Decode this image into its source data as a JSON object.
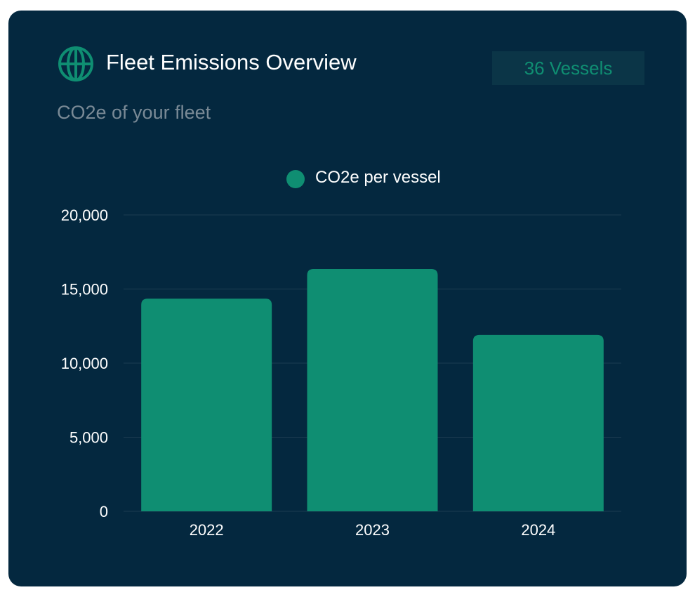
{
  "card": {
    "title": "Fleet Emissions Overview",
    "badge": "36 Vessels",
    "subtitle": "CO2e of your fleet",
    "icon": "globe-icon"
  },
  "colors": {
    "background": "#04283f",
    "bar": "#0f8e72",
    "text": "#ffffff",
    "muted": "#7a8a96",
    "gridline": "#1d3d52"
  },
  "chart_data": {
    "type": "bar",
    "categories": [
      "2022",
      "2023",
      "2024"
    ],
    "series": [
      {
        "name": "CO2e per vessel",
        "values": [
          14350,
          16350,
          11900
        ]
      }
    ],
    "ylim": [
      0,
      20000
    ],
    "yticks": [
      0,
      5000,
      10000,
      15000,
      20000
    ],
    "ytick_labels": [
      "0",
      "5,000",
      "10,000",
      "15,000",
      "20,000"
    ],
    "grid": true,
    "legend": "top-center",
    "xlabel": "",
    "ylabel": ""
  }
}
